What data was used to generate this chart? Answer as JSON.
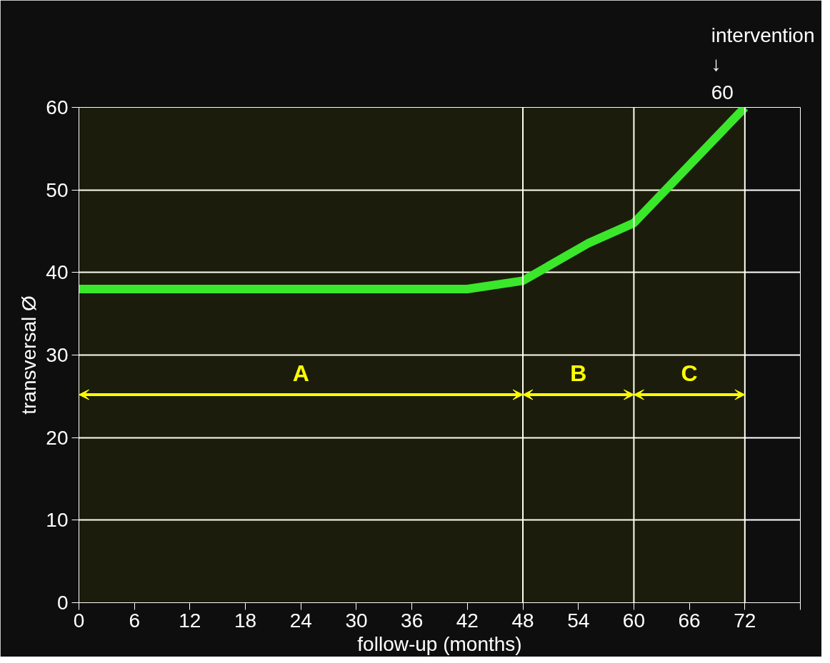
{
  "chart_data": {
    "type": "line",
    "xlabel": "follow-up (months)",
    "ylabel": "transversal Ø",
    "x": [
      0,
      6,
      12,
      18,
      24,
      30,
      36,
      42,
      48,
      55,
      60,
      72
    ],
    "series": [
      {
        "color": "#2ee62e",
        "values": [
          38,
          38,
          38,
          38,
          38,
          38,
          38,
          38,
          39,
          43.5,
          46,
          60
        ]
      }
    ],
    "xlim": [
      0,
      78
    ],
    "xticks": [
      0,
      6,
      12,
      18,
      24,
      30,
      36,
      42,
      48,
      54,
      60,
      66,
      72,
      {
        "value": 78,
        "label": null
      }
    ],
    "ylim": [
      0,
      60
    ],
    "yticks": [
      0,
      10,
      20,
      30,
      40,
      50,
      60
    ],
    "grid": "y",
    "marker": "none",
    "line_style": "solid",
    "ref_lines": [
      {
        "axis": "x",
        "value": 48,
        "label": null
      },
      {
        "axis": "x",
        "value": 60,
        "label": null
      },
      {
        "axis": "x",
        "value": 72,
        "label": null
      }
    ],
    "bands": [
      {
        "axis": "x",
        "from": 0,
        "to": 48,
        "label": "A",
        "color": "#ffff00"
      },
      {
        "axis": "x",
        "from": 48,
        "to": 60,
        "label": "B",
        "color": "#ffff00"
      },
      {
        "axis": "x",
        "from": 60,
        "to": 72,
        "label": "C",
        "color": "#ffff00"
      }
    ],
    "annotations": [
      "intervention\n↓\n60"
    ]
  }
}
